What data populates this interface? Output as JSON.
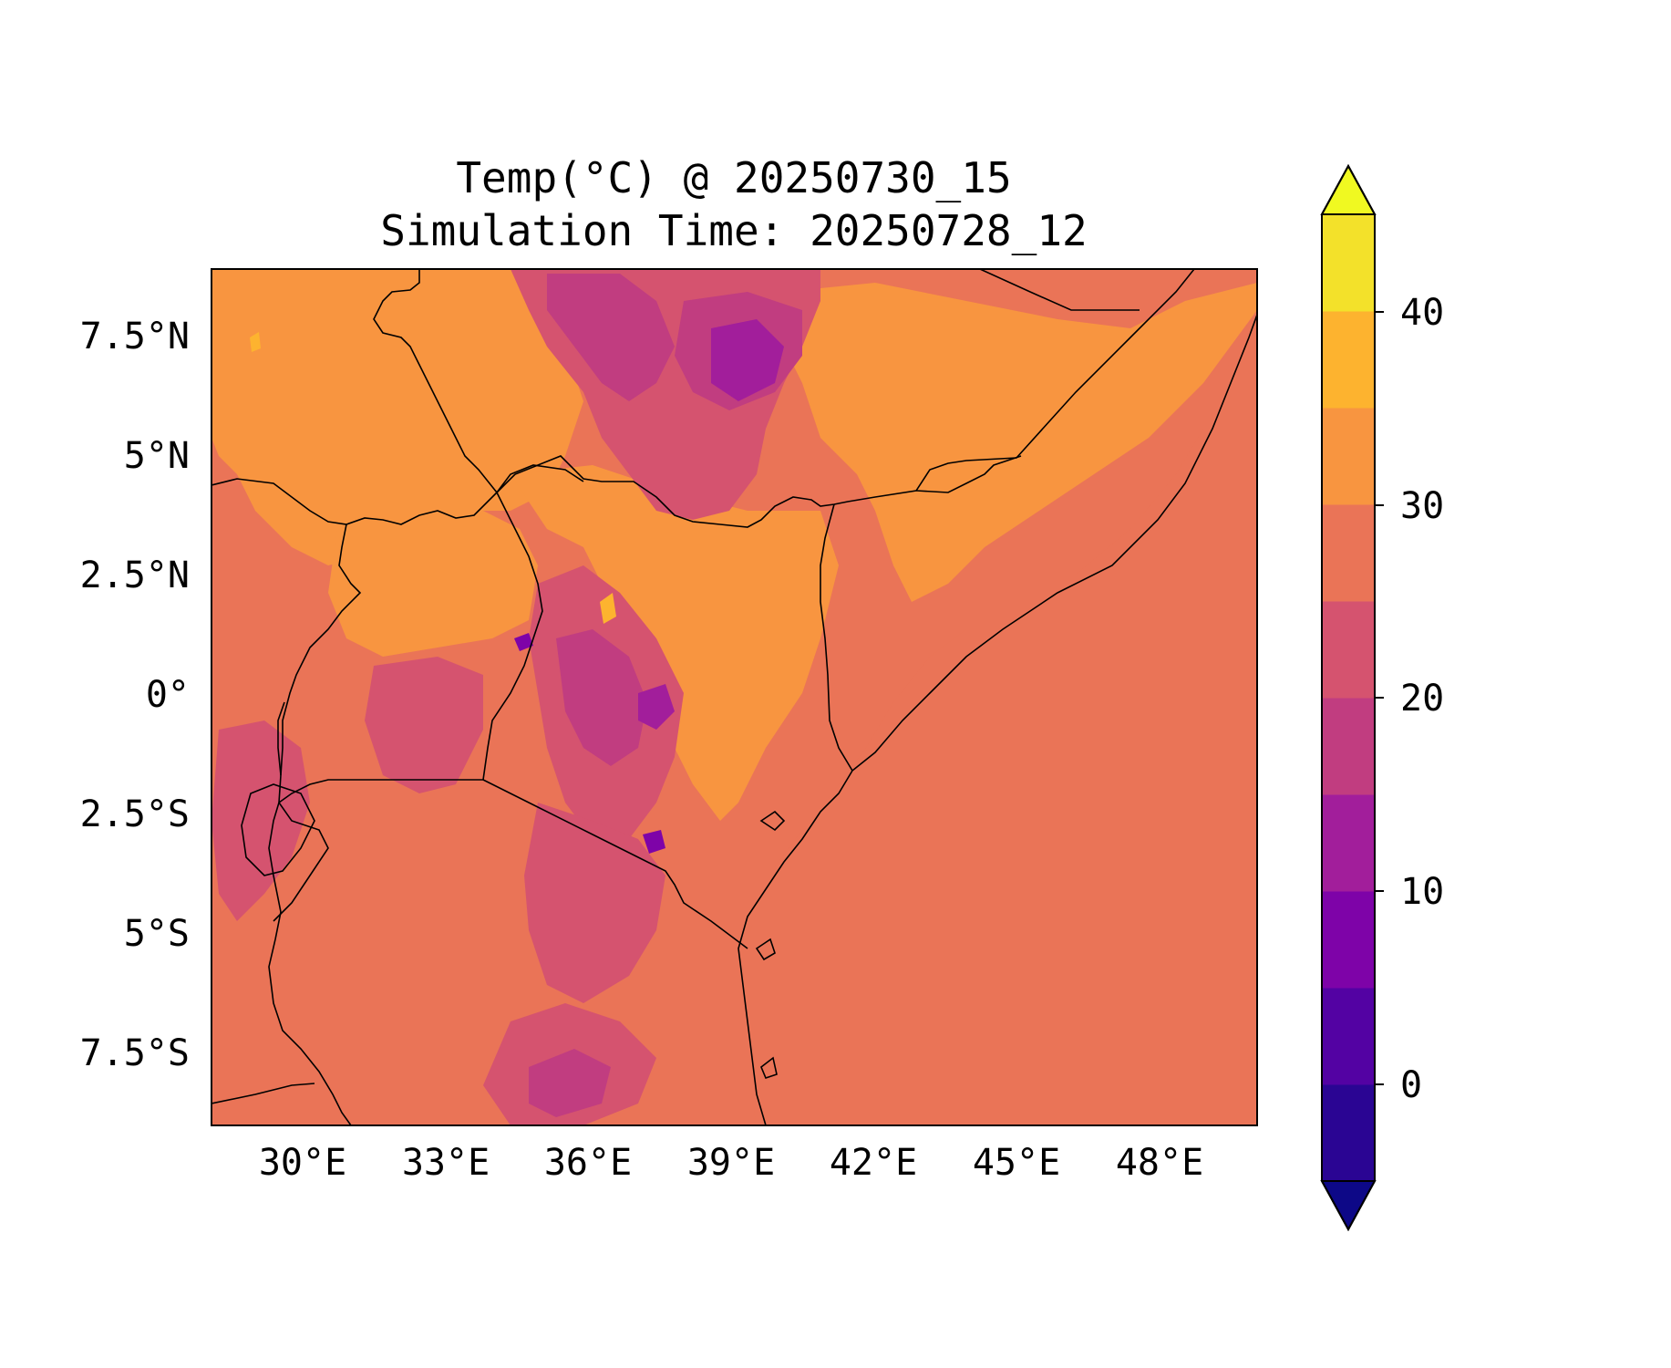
{
  "figure": {
    "title_line1": "Temp(°C) @ 20250730_15",
    "title_line2": "Simulation Time: 20250728_12"
  },
  "map_axes": {
    "lon_ticks": [
      "30°E",
      "33°E",
      "36°E",
      "39°E",
      "42°E",
      "45°E",
      "48°E"
    ],
    "lat_ticks": [
      "7.5°N",
      "5°N",
      "2.5°N",
      "0°",
      "2.5°S",
      "5°S",
      "7.5°S"
    ],
    "lon_range": [
      28,
      50
    ],
    "lat_range": [
      -9,
      9
    ]
  },
  "colorbar": {
    "ticks": [
      "40",
      "30",
      "20",
      "10",
      "0"
    ],
    "levels": [
      -5,
      0,
      5,
      10,
      15,
      20,
      25,
      30,
      35,
      40,
      45
    ],
    "extend": "both",
    "colors": {
      "under": "#0d0887",
      "over": "#f0f921",
      "bands": [
        "#2a0593",
        "#5302a3",
        "#7e03a8",
        "#a21e9b",
        "#c13d80",
        "#d5536f",
        "#ea7457",
        "#f89540",
        "#fdb32f",
        "#f3e12a"
      ]
    }
  },
  "legend_colors": {
    "land_hot": "#f89540",
    "land_warm": "#ea7457",
    "highland": "#d5536f",
    "high_peaks": "#c13d80",
    "peaks": "#a21e9b",
    "coldest": "#7e03a8",
    "ocean": "#ea7457",
    "hot_spot": "#fdb32f"
  }
}
